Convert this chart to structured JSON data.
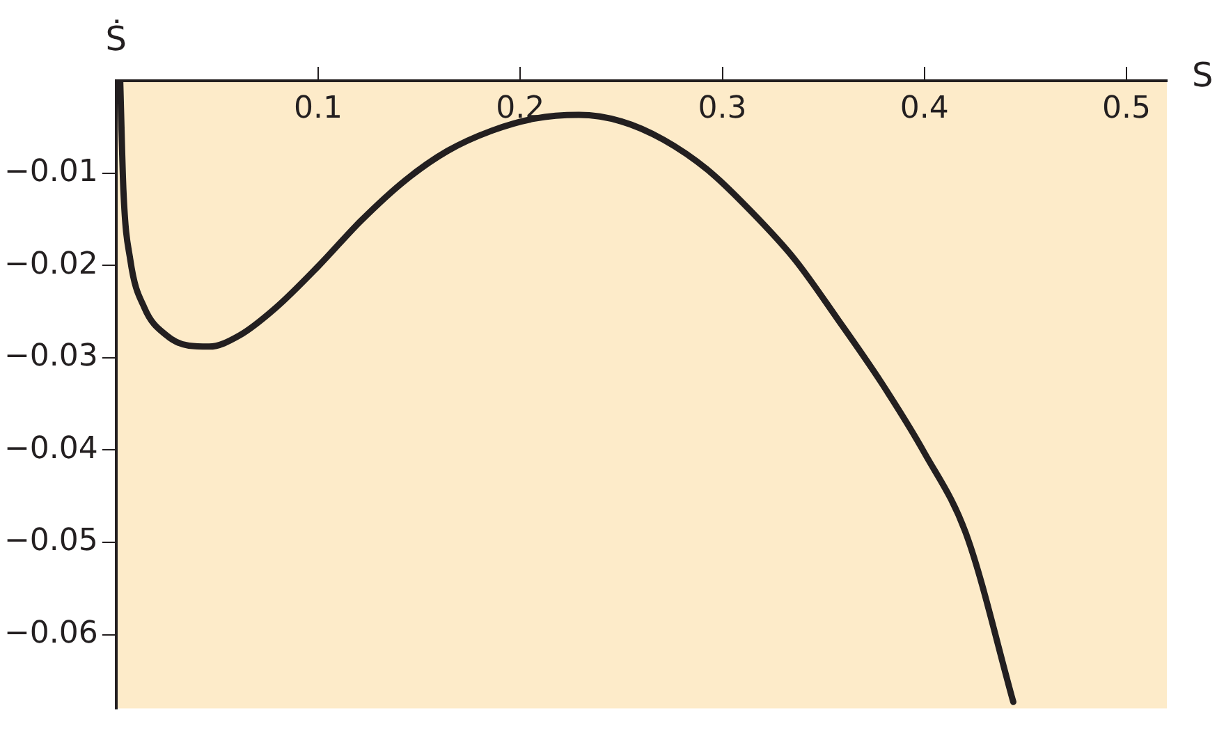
{
  "chart_data": {
    "type": "line",
    "xlabel": "S",
    "ylabel": "Ṡ",
    "xlim": [
      0,
      0.52
    ],
    "ylim": [
      -0.068,
      0
    ],
    "xticks": [
      0.1,
      0.2,
      0.3,
      0.4,
      0.5
    ],
    "yticks": [
      {
        "value": -0.01,
        "label": "−0.01"
      },
      {
        "value": -0.02,
        "label": "−0.02"
      },
      {
        "value": -0.03,
        "label": "−0.03"
      },
      {
        "value": -0.04,
        "label": "−0.04"
      },
      {
        "value": -0.05,
        "label": "−0.05"
      },
      {
        "value": -0.06,
        "label": "−0.06"
      }
    ],
    "grid": false,
    "legend": false,
    "marker": "none",
    "line_style": "solid",
    "series": [
      {
        "color": "#231f20",
        "x": [
          0.002,
          0.0036,
          0.007,
          0.014,
          0.025,
          0.036,
          0.046,
          0.061,
          0.079,
          0.1,
          0.121,
          0.143,
          0.164,
          0.186,
          0.207,
          0.229,
          0.25,
          0.271,
          0.293,
          0.314,
          0.336,
          0.357,
          0.379,
          0.4,
          0.421,
          0.444
        ],
        "values": [
          0,
          -0.0119,
          -0.0194,
          -0.0246,
          -0.0276,
          -0.0287,
          -0.0288,
          -0.0276,
          -0.0246,
          -0.0201,
          -0.0152,
          -0.0108,
          -0.0076,
          -0.0054,
          -0.0041,
          -0.0037,
          -0.0044,
          -0.0064,
          -0.0097,
          -0.0141,
          -0.0194,
          -0.0258,
          -0.0328,
          -0.0403,
          -0.0493,
          -0.0673
        ]
      }
    ]
  }
}
